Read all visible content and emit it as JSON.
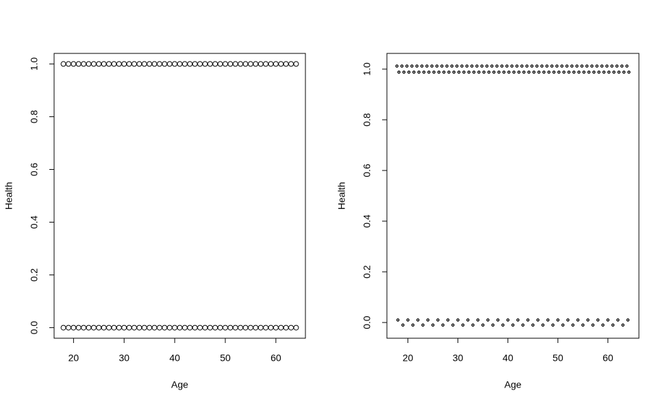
{
  "chart_data": [
    {
      "type": "scatter",
      "xlabel": "Age",
      "ylabel": "Health",
      "xlim": [
        16.16,
        65.84
      ],
      "ylim": [
        -0.04,
        1.04
      ],
      "xticks": [
        20,
        30,
        40,
        50,
        60
      ],
      "yticks": [
        {
          "value": 0,
          "label": "0.0"
        },
        0.2,
        0.4,
        0.6,
        0.8,
        {
          "value": 1,
          "label": "1.0"
        }
      ],
      "x": [
        18,
        19,
        20,
        21,
        22,
        23,
        24,
        25,
        26,
        27,
        28,
        29,
        30,
        31,
        32,
        33,
        34,
        35,
        36,
        37,
        38,
        39,
        40,
        41,
        42,
        43,
        44,
        45,
        46,
        47,
        48,
        49,
        50,
        51,
        52,
        53,
        54,
        55,
        56,
        57,
        58,
        59,
        60,
        61,
        62,
        63,
        64
      ],
      "series": [
        {
          "color": "#000000",
          "values": [
            1,
            1,
            1,
            1,
            1,
            1,
            1,
            1,
            1,
            1,
            1,
            1,
            1,
            1,
            1,
            1,
            1,
            1,
            1,
            1,
            1,
            1,
            1,
            1,
            1,
            1,
            1,
            1,
            1,
            1,
            1,
            1,
            1,
            1,
            1,
            1,
            1,
            1,
            1,
            1,
            1,
            1,
            1,
            1,
            1,
            1,
            1
          ]
        },
        {
          "color": "#000000",
          "values": [
            0,
            0,
            0,
            0,
            0,
            0,
            0,
            0,
            0,
            0,
            0,
            0,
            0,
            0,
            0,
            0,
            0,
            0,
            0,
            0,
            0,
            0,
            0,
            0,
            0,
            0,
            0,
            0,
            0,
            0,
            0,
            0,
            0,
            0,
            0,
            0,
            0,
            0,
            0,
            0,
            0,
            0,
            0,
            0,
            0,
            0,
            0
          ]
        }
      ]
    },
    {
      "type": "scatter",
      "xlabel": "Age",
      "ylabel": "Health",
      "xlim": [
        15.8,
        66.2
      ],
      "ylim": [
        -0.062,
        1.062
      ],
      "xticks": [
        20,
        30,
        40,
        50,
        60
      ],
      "yticks": [
        {
          "value": 0,
          "label": "0.0"
        },
        0.2,
        0.4,
        0.6,
        0.8,
        {
          "value": 1,
          "label": "1.0"
        }
      ],
      "x": [
        17.8,
        18.2,
        18.8,
        19.2,
        19.8,
        20.2,
        20.8,
        21.2,
        21.8,
        22.2,
        22.8,
        23.2,
        23.8,
        24.2,
        24.8,
        25.2,
        25.8,
        26.2,
        26.8,
        27.2,
        27.8,
        28.2,
        28.8,
        29.2,
        29.8,
        30.2,
        30.8,
        31.2,
        31.8,
        32.2,
        32.8,
        33.2,
        33.8,
        34.2,
        34.8,
        35.2,
        35.8,
        36.2,
        36.8,
        37.2,
        37.8,
        38.2,
        38.8,
        39.2,
        39.8,
        40.2,
        40.8,
        41.2,
        41.8,
        42.2,
        42.8,
        43.2,
        43.8,
        44.2,
        44.8,
        45.2,
        45.8,
        46.2,
        46.8,
        47.2,
        47.8,
        48.2,
        48.8,
        49.2,
        49.8,
        50.2,
        50.8,
        51.2,
        51.8,
        52.2,
        52.8,
        53.2,
        53.8,
        54.2,
        54.8,
        55.2,
        55.8,
        56.2,
        56.8,
        57.2,
        57.8,
        58.2,
        58.8,
        59.2,
        59.8,
        60.2,
        60.8,
        61.2,
        61.8,
        62.2,
        62.8,
        63.2,
        63.8,
        64.2,
        18,
        19,
        20,
        21,
        22,
        23,
        24,
        25,
        26,
        27,
        28,
        29,
        30,
        31,
        32,
        33,
        34,
        35,
        36,
        37,
        38,
        39,
        40,
        41,
        42,
        43,
        44,
        45,
        46,
        47,
        48,
        49,
        50,
        51,
        52,
        53,
        54,
        55,
        56,
        57,
        58,
        59,
        60,
        61,
        62,
        63,
        64
      ],
      "series": [
        {
          "color": "#000000",
          "values": [
            1.012,
            0.988,
            1.012,
            0.988,
            1.012,
            0.988,
            1.012,
            0.988,
            1.012,
            0.988,
            1.012,
            0.988,
            1.012,
            0.988,
            1.012,
            0.988,
            1.012,
            0.988,
            1.012,
            0.988,
            1.012,
            0.988,
            1.012,
            0.988,
            1.012,
            0.988,
            1.012,
            0.988,
            1.012,
            0.988,
            1.012,
            0.988,
            1.012,
            0.988,
            1.012,
            0.988,
            1.012,
            0.988,
            1.012,
            0.988,
            1.012,
            0.988,
            1.012,
            0.988,
            1.012,
            0.988,
            1.012,
            0.988,
            1.012,
            0.988,
            1.012,
            0.988,
            1.012,
            0.988,
            1.012,
            0.988,
            1.012,
            0.988,
            1.012,
            0.988,
            1.012,
            0.988,
            1.012,
            0.988,
            1.012,
            0.988,
            1.012,
            0.988,
            1.012,
            0.988,
            1.012,
            0.988,
            1.012,
            0.988,
            1.012,
            0.988,
            1.012,
            0.988,
            1.012,
            0.988,
            1.012,
            0.988,
            1.012,
            0.988,
            1.012,
            0.988,
            1.012,
            0.988,
            1.012,
            0.988,
            1.012,
            0.988,
            1.012,
            0.988,
            0.01,
            -0.01,
            0.01,
            -0.01,
            0.01,
            -0.01,
            0.01,
            -0.01,
            0.01,
            -0.01,
            0.01,
            -0.01,
            0.01,
            -0.01,
            0.01,
            -0.01,
            0.01,
            -0.01,
            0.01,
            -0.01,
            0.01,
            -0.01,
            0.01,
            -0.01,
            0.01,
            -0.01,
            0.01,
            -0.01,
            0.01,
            -0.01,
            0.01,
            -0.01,
            0.01,
            -0.01,
            0.01,
            -0.01,
            0.01,
            -0.01,
            0.01,
            -0.01,
            0.01,
            -0.01,
            0.01,
            -0.01,
            0.01,
            -0.01,
            0.01
          ]
        }
      ]
    }
  ]
}
